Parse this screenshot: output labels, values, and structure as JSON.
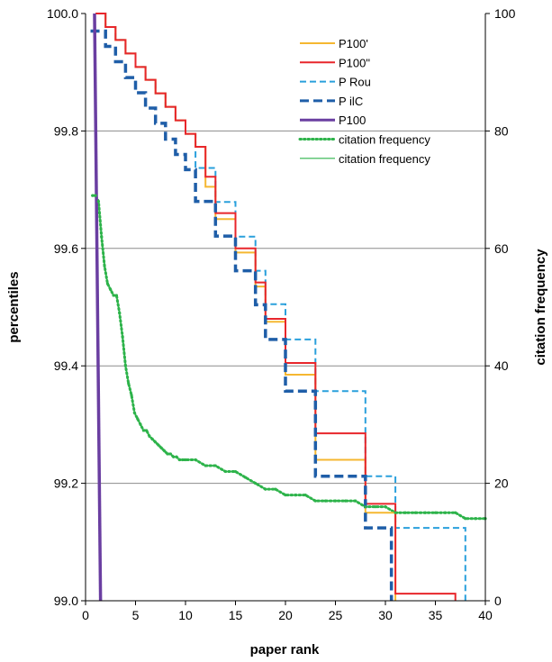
{
  "chart_data": {
    "type": "line",
    "xlabel": "paper rank",
    "ylabel": "percentiles",
    "y2label": "citation frequency",
    "xlim": [
      0,
      40
    ],
    "ylim": [
      99.0,
      100.0
    ],
    "y2lim": [
      0,
      100
    ],
    "x_ticks": [
      "0",
      "5",
      "10",
      "15",
      "20",
      "25",
      "30",
      "35",
      "40"
    ],
    "y_ticks": [
      "99.0",
      "99.2",
      "99.4",
      "99.6",
      "99.8",
      "100.0"
    ],
    "y2_ticks": [
      "0",
      "20",
      "40",
      "60",
      "80",
      "100"
    ],
    "grid": "horizontal",
    "legend_position": "top-right",
    "series": [
      {
        "name": "P100'",
        "axis": "left",
        "color": "#f5b731",
        "style": "solid",
        "step": true,
        "x": [
          1,
          2,
          3,
          4,
          5,
          6,
          7,
          8,
          9,
          10,
          11,
          12,
          13,
          14,
          15,
          16,
          17,
          18,
          19,
          20,
          21,
          22,
          23,
          24,
          25,
          26,
          27,
          28,
          29,
          30,
          31
        ],
        "y": [
          100.0,
          99.977,
          99.955,
          99.932,
          99.909,
          99.887,
          99.864,
          99.841,
          99.818,
          99.795,
          99.773,
          99.705,
          99.65,
          99.65,
          99.593,
          99.593,
          99.535,
          99.475,
          99.475,
          99.385,
          99.385,
          99.385,
          99.24,
          99.24,
          99.24,
          99.24,
          99.24,
          99.15,
          99.15,
          99.15,
          99.0
        ]
      },
      {
        "name": "P100\"",
        "axis": "left",
        "color": "#e8262b",
        "style": "solid",
        "step": true,
        "x": [
          1,
          2,
          3,
          4,
          5,
          6,
          7,
          8,
          9,
          10,
          11,
          12,
          13,
          14,
          15,
          16,
          17,
          18,
          19,
          20,
          21,
          22,
          23,
          24,
          25,
          26,
          27,
          28,
          29,
          30,
          31,
          32,
          33,
          34,
          35,
          36,
          37
        ],
        "y": [
          100.0,
          99.977,
          99.955,
          99.932,
          99.909,
          99.887,
          99.864,
          99.841,
          99.818,
          99.795,
          99.773,
          99.722,
          99.66,
          99.66,
          99.6,
          99.6,
          99.542,
          99.48,
          99.48,
          99.405,
          99.405,
          99.405,
          99.285,
          99.285,
          99.285,
          99.285,
          99.285,
          99.165,
          99.165,
          99.165,
          99.012,
          99.012,
          99.012,
          99.012,
          99.012,
          99.012,
          99.0
        ]
      },
      {
        "name": "P Rou",
        "axis": "left",
        "color": "#2aa0dc",
        "style": "dashed",
        "step": true,
        "x": [
          1,
          2,
          3,
          4,
          5,
          6,
          7,
          8,
          9,
          10,
          11,
          12,
          13,
          14,
          15,
          16,
          17,
          18,
          19,
          20,
          21,
          22,
          23,
          24,
          25,
          26,
          27,
          28,
          29,
          30,
          31,
          32,
          33,
          34,
          35,
          36,
          37,
          38
        ],
        "y": [
          100.0,
          99.977,
          99.955,
          99.932,
          99.909,
          99.887,
          99.864,
          99.841,
          99.818,
          99.795,
          99.737,
          99.737,
          99.679,
          99.679,
          99.62,
          99.62,
          99.562,
          99.505,
          99.505,
          99.445,
          99.445,
          99.445,
          99.357,
          99.357,
          99.357,
          99.357,
          99.357,
          99.212,
          99.212,
          99.212,
          99.124,
          99.124,
          99.124,
          99.124,
          99.124,
          99.124,
          99.124,
          99.0
        ]
      },
      {
        "name": "P ilC",
        "axis": "left",
        "color": "#1f5ea8",
        "style": "dashed-bold",
        "step": true,
        "x": [
          0.5,
          1,
          2,
          3,
          4,
          5,
          6,
          7,
          8,
          9,
          10,
          11,
          12,
          13,
          14,
          15,
          16,
          17,
          18,
          19,
          20,
          21,
          22,
          23,
          24,
          25,
          26,
          27,
          28,
          29,
          30,
          30.6
        ],
        "y": [
          99.97,
          99.97,
          99.944,
          99.918,
          99.891,
          99.865,
          99.839,
          99.813,
          99.786,
          99.76,
          99.734,
          99.68,
          99.68,
          99.621,
          99.621,
          99.562,
          99.562,
          99.504,
          99.445,
          99.445,
          99.357,
          99.357,
          99.357,
          99.212,
          99.212,
          99.212,
          99.212,
          99.212,
          99.124,
          99.124,
          99.124,
          99.0
        ]
      },
      {
        "name": "P100",
        "axis": "left",
        "color": "#6a3ea1",
        "style": "solid-bold",
        "step": false,
        "x": [
          0.9,
          1.5
        ],
        "y": [
          100.0,
          99.0
        ]
      },
      {
        "name": "citation frequency",
        "axis": "right",
        "color": "#2db34a",
        "style": "dotted",
        "step": false,
        "x": [
          0.7,
          1,
          1.3,
          1.6,
          1.9,
          2.2,
          2.5,
          2.8,
          3.1,
          3.4,
          3.7,
          4,
          4.3,
          4.6,
          4.9,
          5.2,
          5.5,
          5.8,
          6.1,
          6.4,
          6.7,
          7,
          7.3,
          7.6,
          7.9,
          8.2,
          8.5,
          8.8,
          9.1,
          9.4,
          9.7,
          10,
          11,
          12,
          13,
          14,
          15,
          16,
          17,
          18,
          19,
          20,
          21,
          22,
          23,
          24,
          25,
          26,
          27,
          28,
          29,
          30,
          31,
          32,
          33,
          34,
          35,
          36,
          37,
          38,
          39,
          40
        ],
        "y": [
          69,
          69,
          68,
          62,
          57,
          54,
          53,
          52,
          52,
          49,
          45,
          40,
          37,
          35,
          32,
          31,
          30,
          29,
          29,
          28,
          27.5,
          27,
          26.5,
          26,
          25.5,
          25,
          25,
          24.5,
          24.5,
          24,
          24,
          24,
          24,
          23,
          23,
          22,
          22,
          21,
          20,
          19,
          19,
          18,
          18,
          18,
          17,
          17,
          17,
          17,
          17,
          16,
          16,
          16,
          15,
          15,
          15,
          15,
          15,
          15,
          15,
          14,
          14,
          14
        ]
      },
      {
        "name": "citation frequency",
        "axis": "right",
        "color": "#2db34a",
        "style": "thin",
        "step": false,
        "x": [
          0.7,
          1,
          1.3,
          1.6,
          1.9,
          2.2,
          2.5,
          2.8,
          3.1,
          3.4,
          3.7,
          4,
          4.3,
          4.6,
          4.9,
          5.2,
          5.5,
          5.8,
          6.1,
          6.4,
          6.7,
          7,
          7.3,
          7.6,
          7.9,
          8.2,
          8.5,
          8.8,
          9.1,
          9.4,
          9.7,
          10,
          11,
          12,
          13,
          14,
          15,
          16,
          17,
          18,
          19,
          20,
          21,
          22,
          23,
          24,
          25,
          26,
          27,
          28,
          29,
          30,
          31,
          32,
          33,
          34,
          35,
          36,
          37,
          38,
          39,
          40
        ],
        "y": [
          69,
          69,
          68,
          62,
          57,
          54,
          53,
          52,
          52,
          49,
          45,
          40,
          37,
          35,
          32,
          31,
          30,
          29,
          29,
          28,
          27.5,
          27,
          26.5,
          26,
          25.5,
          25,
          25,
          24.5,
          24.5,
          24,
          24,
          24,
          24,
          23,
          23,
          22,
          22,
          21,
          20,
          19,
          19,
          18,
          18,
          18,
          17,
          17,
          17,
          17,
          17,
          16,
          16,
          16,
          15,
          15,
          15,
          15,
          15,
          15,
          15,
          14,
          14,
          14
        ]
      }
    ]
  }
}
